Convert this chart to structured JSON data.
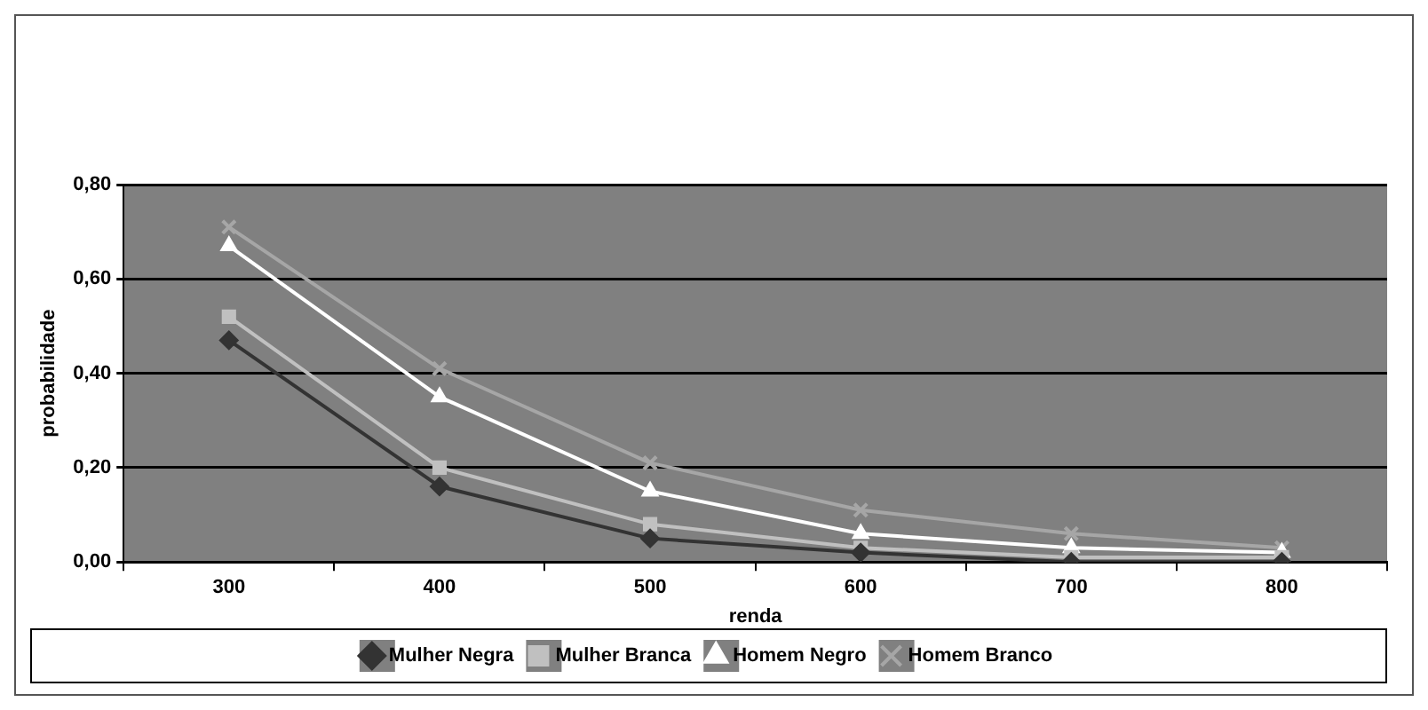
{
  "chart_data": {
    "type": "line",
    "xlabel": "renda",
    "ylabel": "probabilidade",
    "categories": [
      "300",
      "400",
      "500",
      "600",
      "700",
      "800"
    ],
    "series": [
      {
        "name": "Mulher Negra",
        "color": "#333333",
        "marker": "diamond",
        "values": [
          0.47,
          0.16,
          0.05,
          0.02,
          0.0,
          0.0
        ]
      },
      {
        "name": "Mulher Branca",
        "color": "#c0c0c0",
        "marker": "square",
        "values": [
          0.52,
          0.2,
          0.08,
          0.03,
          0.01,
          0.01
        ]
      },
      {
        "name": "Homem Negro",
        "color": "#ffffff",
        "marker": "triangle",
        "values": [
          0.67,
          0.35,
          0.15,
          0.06,
          0.03,
          0.02
        ]
      },
      {
        "name": "Homem Branco",
        "color": "#a6a6a6",
        "marker": "cross",
        "values": [
          0.71,
          0.41,
          0.21,
          0.11,
          0.06,
          0.03
        ]
      }
    ],
    "ylim": [
      0,
      0.8
    ],
    "yticks": [
      {
        "value": 0,
        "label": "0,00"
      },
      {
        "value": 0.2,
        "label": "0,20"
      },
      {
        "value": 0.4,
        "label": "0,40"
      },
      {
        "value": 0.6,
        "label": "0,60"
      },
      {
        "value": 0.8,
        "label": "0,80"
      }
    ],
    "grid": "y",
    "legend": "bottom",
    "line_style": "solid"
  }
}
